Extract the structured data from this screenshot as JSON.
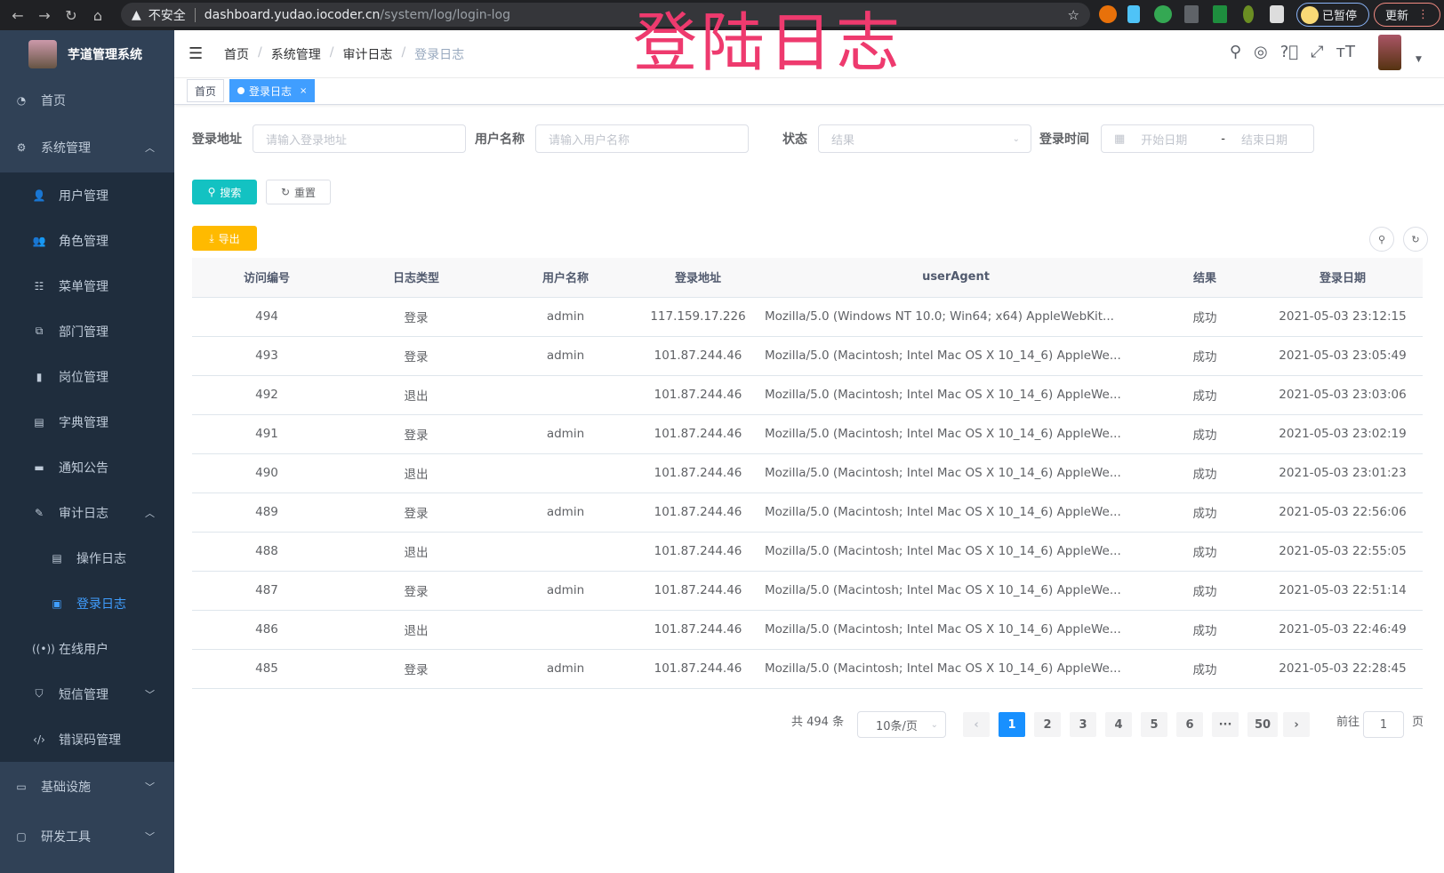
{
  "browser": {
    "insecure": "不安全",
    "host": "dashboard.yudao.iocoder.cn",
    "path": "/system/log/login-log",
    "paused": "已暂停",
    "update": "更新"
  },
  "overlay_title": "登陆日志",
  "app": {
    "title": "芋道管理系统"
  },
  "sidebar": {
    "items": [
      {
        "label": "首页",
        "icon": "dashboard-icon",
        "level": 0
      },
      {
        "label": "系统管理",
        "icon": "gear-icon",
        "level": 0,
        "expanded": true
      },
      {
        "label": "用户管理",
        "icon": "user-icon",
        "level": 1
      },
      {
        "label": "角色管理",
        "icon": "role-icon",
        "level": 1
      },
      {
        "label": "菜单管理",
        "icon": "tree-table-icon",
        "level": 1
      },
      {
        "label": "部门管理",
        "icon": "org-tree-icon",
        "level": 1
      },
      {
        "label": "岗位管理",
        "icon": "post-icon",
        "level": 1
      },
      {
        "label": "字典管理",
        "icon": "dict-icon",
        "level": 1
      },
      {
        "label": "通知公告",
        "icon": "message-icon",
        "level": 1
      },
      {
        "label": "审计日志",
        "icon": "log-icon",
        "level": 1,
        "expanded": true
      },
      {
        "label": "操作日志",
        "icon": "form-icon",
        "level": 2
      },
      {
        "label": "登录日志",
        "icon": "logininfor-icon",
        "level": 2,
        "active": true
      },
      {
        "label": "在线用户",
        "icon": "online-icon",
        "level": 1
      },
      {
        "label": "短信管理",
        "icon": "shield-icon",
        "level": 1,
        "expanded": false
      },
      {
        "label": "错误码管理",
        "icon": "code-icon",
        "level": 1
      },
      {
        "label": "基础设施",
        "icon": "monitor-icon",
        "level": 0,
        "expanded": false
      },
      {
        "label": "研发工具",
        "icon": "tool-icon",
        "level": 0,
        "expanded": false
      }
    ]
  },
  "breadcrumb": [
    "首页",
    "系统管理",
    "审计日志",
    "登录日志"
  ],
  "tags": [
    {
      "label": "首页"
    },
    {
      "label": "登录日志",
      "active": true
    }
  ],
  "filters": {
    "address": {
      "label": "登录地址",
      "placeholder": "请输入登录地址"
    },
    "username": {
      "label": "用户名称",
      "placeholder": "请输入用户名称"
    },
    "status": {
      "label": "状态",
      "placeholder": "结果"
    },
    "time": {
      "label": "登录时间",
      "start": "开始日期",
      "sep": "-",
      "end": "结束日期"
    }
  },
  "buttons": {
    "search": "搜索",
    "reset": "重置",
    "export": "导出"
  },
  "table": {
    "columns": [
      "访问编号",
      "日志类型",
      "用户名称",
      "登录地址",
      "userAgent",
      "结果",
      "登录日期"
    ],
    "rows": [
      [
        "494",
        "登录",
        "admin",
        "117.159.17.226",
        "Mozilla/5.0 (Windows NT 10.0; Win64; x64) AppleWebKit...",
        "成功",
        "2021-05-03 23:12:15"
      ],
      [
        "493",
        "登录",
        "admin",
        "101.87.244.46",
        "Mozilla/5.0 (Macintosh; Intel Mac OS X 10_14_6) AppleWe...",
        "成功",
        "2021-05-03 23:05:49"
      ],
      [
        "492",
        "退出",
        "",
        "101.87.244.46",
        "Mozilla/5.0 (Macintosh; Intel Mac OS X 10_14_6) AppleWe...",
        "成功",
        "2021-05-03 23:03:06"
      ],
      [
        "491",
        "登录",
        "admin",
        "101.87.244.46",
        "Mozilla/5.0 (Macintosh; Intel Mac OS X 10_14_6) AppleWe...",
        "成功",
        "2021-05-03 23:02:19"
      ],
      [
        "490",
        "退出",
        "",
        "101.87.244.46",
        "Mozilla/5.0 (Macintosh; Intel Mac OS X 10_14_6) AppleWe...",
        "成功",
        "2021-05-03 23:01:23"
      ],
      [
        "489",
        "登录",
        "admin",
        "101.87.244.46",
        "Mozilla/5.0 (Macintosh; Intel Mac OS X 10_14_6) AppleWe...",
        "成功",
        "2021-05-03 22:56:06"
      ],
      [
        "488",
        "退出",
        "",
        "101.87.244.46",
        "Mozilla/5.0 (Macintosh; Intel Mac OS X 10_14_6) AppleWe...",
        "成功",
        "2021-05-03 22:55:05"
      ],
      [
        "487",
        "登录",
        "admin",
        "101.87.244.46",
        "Mozilla/5.0 (Macintosh; Intel Mac OS X 10_14_6) AppleWe...",
        "成功",
        "2021-05-03 22:51:14"
      ],
      [
        "486",
        "退出",
        "",
        "101.87.244.46",
        "Mozilla/5.0 (Macintosh; Intel Mac OS X 10_14_6) AppleWe...",
        "成功",
        "2021-05-03 22:46:49"
      ],
      [
        "485",
        "登录",
        "admin",
        "101.87.244.46",
        "Mozilla/5.0 (Macintosh; Intel Mac OS X 10_14_6) AppleWe...",
        "成功",
        "2021-05-03 22:28:45"
      ]
    ]
  },
  "pagination": {
    "total": "共 494 条",
    "page_size": "10条/页",
    "pages": [
      "1",
      "2",
      "3",
      "4",
      "5",
      "6",
      "···",
      "50"
    ],
    "current": "1",
    "goto_label": "前往",
    "goto_value": "1",
    "goto_suffix": "页"
  },
  "colors": {
    "sidebar": "#304156",
    "submenu": "#1f2d3d",
    "primary": "#1890ff",
    "search": "#13c2c2",
    "export": "#ffba00",
    "overlay": "#ee3a6e"
  }
}
